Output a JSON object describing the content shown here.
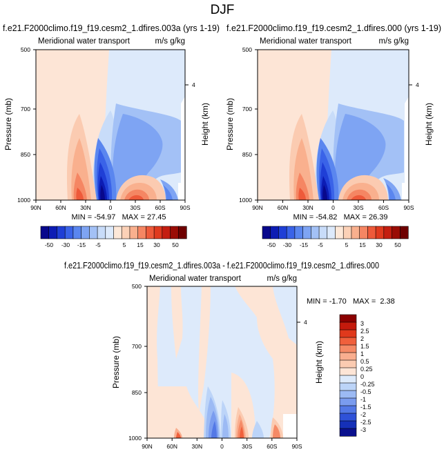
{
  "figure": {
    "title": "DJF",
    "colors": {
      "frame": "#000000",
      "background": "#ffffff"
    }
  },
  "chart_data": [
    {
      "type": "heatmap",
      "title": "f.e21.F2000climo.f19_f19.cesm2_1.dfires.003a (yrs 1-19)",
      "subtitle_left": "Meridional water transport",
      "subtitle_right": "m/s g/kg",
      "ylabel": "Pressure (mb)",
      "ylabel_right": "Height (km)",
      "x_ticks": [
        "90N",
        "60N",
        "30N",
        "0",
        "30S",
        "60S",
        "90S"
      ],
      "y_ticks": [
        "500",
        "700",
        "850",
        "1000"
      ],
      "y_ticks_right": [
        "4"
      ],
      "xlim": [
        90,
        -90
      ],
      "ylim": [
        1000,
        500
      ],
      "y_scale": "log",
      "stats_text": "MIN = -54.97   MAX = 27.45",
      "min": -54.97,
      "max": 27.45,
      "colorbar": {
        "orientation": "horizontal",
        "labels": [
          "-50",
          "-30",
          "-15",
          "-5",
          "5",
          "15",
          "30",
          "50"
        ],
        "colors": [
          "#08088c",
          "#0c1cb4",
          "#1f3fd6",
          "#3a63e8",
          "#5a86ef",
          "#7ea4f3",
          "#a3c1f6",
          "#c8dcf9",
          "#ddeafb",
          "#fde8d8",
          "#fbd1b7",
          "#f9b08e",
          "#f58663",
          "#ee5a3a",
          "#e03a1e",
          "#c41e10",
          "#9a0c05",
          "#6e0000"
        ]
      }
    },
    {
      "type": "heatmap",
      "title": "f.e21.F2000climo.f19_f19.cesm2_1.dfires.000 (yrs 1-19)",
      "subtitle_left": "Meridional water transport",
      "subtitle_right": "m/s g/kg",
      "ylabel": "Pressure (mb)",
      "ylabel_right": "Height (km)",
      "x_ticks": [
        "90N",
        "60N",
        "30N",
        "0",
        "30S",
        "60S",
        "90S"
      ],
      "y_ticks": [
        "500",
        "700",
        "850",
        "1000"
      ],
      "y_ticks_right": [
        "4"
      ],
      "xlim": [
        90,
        -90
      ],
      "ylim": [
        1000,
        500
      ],
      "y_scale": "log",
      "stats_text": "MIN = -54.82   MAX = 26.39",
      "min": -54.82,
      "max": 26.39,
      "colorbar": {
        "orientation": "horizontal",
        "labels": [
          "-50",
          "-30",
          "-15",
          "-5",
          "5",
          "15",
          "30",
          "50"
        ],
        "colors": [
          "#08088c",
          "#0c1cb4",
          "#1f3fd6",
          "#3a63e8",
          "#5a86ef",
          "#7ea4f3",
          "#a3c1f6",
          "#c8dcf9",
          "#ddeafb",
          "#fde8d8",
          "#fbd1b7",
          "#f9b08e",
          "#f58663",
          "#ee5a3a",
          "#e03a1e",
          "#c41e10",
          "#9a0c05",
          "#6e0000"
        ]
      }
    },
    {
      "type": "heatmap",
      "title": "f.e21.F2000climo.f19_f19.cesm2_1.dfires.003a - f.e21.F2000climo.f19_f19.cesm2_1.dfires.000",
      "subtitle_left": "Meridional water transport",
      "subtitle_right": "m/s g/kg",
      "ylabel": "Pressure (mb)",
      "ylabel_right": "Height (km)",
      "x_ticks": [
        "90N",
        "60N",
        "30N",
        "0",
        "30S",
        "60S",
        "90S"
      ],
      "y_ticks": [
        "500",
        "700",
        "850",
        "1000"
      ],
      "y_ticks_right": [
        "4"
      ],
      "xlim": [
        90,
        -90
      ],
      "ylim": [
        1000,
        500
      ],
      "y_scale": "log",
      "stats_text": "MIN = -1.70   MAX =  2.38",
      "min": -1.7,
      "max": 2.38,
      "colorbar": {
        "orientation": "vertical",
        "labels": [
          "3",
          "2.5",
          "2",
          "1.5",
          "1",
          "0.5",
          "0.25",
          "0",
          "-0.25",
          "-0.5",
          "-1",
          "-1.5",
          "-2",
          "-2.5",
          "-3"
        ],
        "colors": [
          "#8b0000",
          "#c41a0c",
          "#e0391c",
          "#f0603c",
          "#f58a66",
          "#f9ae8f",
          "#fbcbb1",
          "#fde5d6",
          "#ddeafb",
          "#bcd4f8",
          "#9cbaf4",
          "#7a9cef",
          "#5378e6",
          "#2f52d8",
          "#1530b8",
          "#0a108e"
        ]
      }
    }
  ]
}
